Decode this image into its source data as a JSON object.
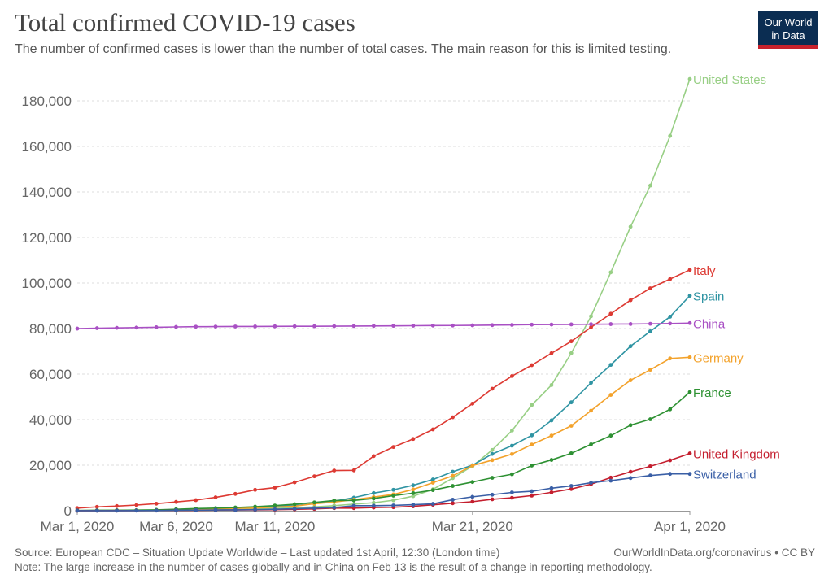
{
  "header": {
    "title": "Total confirmed COVID-19 cases",
    "subtitle": "The number of confirmed cases is lower than the number of total cases. The main reason for this is limited testing."
  },
  "logo": {
    "line1": "Our World",
    "line2": "in Data"
  },
  "footer": {
    "source": "Source: European CDC – Situation Update Worldwide – Last updated 1st April, 12:30 (London time)",
    "note": "Note: The large increase in the number of cases globally and in China on Feb 13 is the result of a change in reporting methodology.",
    "credit": "OurWorldInData.org/coronavirus • CC BY"
  },
  "chart_data": {
    "type": "line",
    "x": [
      "Mar 1",
      "Mar 2",
      "Mar 3",
      "Mar 4",
      "Mar 5",
      "Mar 6",
      "Mar 7",
      "Mar 8",
      "Mar 9",
      "Mar 10",
      "Mar 11",
      "Mar 12",
      "Mar 13",
      "Mar 14",
      "Mar 15",
      "Mar 16",
      "Mar 17",
      "Mar 18",
      "Mar 19",
      "Mar 20",
      "Mar 21",
      "Mar 22",
      "Mar 23",
      "Mar 24",
      "Mar 25",
      "Mar 26",
      "Mar 27",
      "Mar 28",
      "Mar 29",
      "Mar 30",
      "Mar 31",
      "Apr 1"
    ],
    "x_ticks": [
      {
        "index": 0,
        "label": "Mar 1, 2020"
      },
      {
        "index": 5,
        "label": "Mar 6, 2020"
      },
      {
        "index": 10,
        "label": "Mar 11, 2020"
      },
      {
        "index": 20,
        "label": "Mar 21, 2020"
      },
      {
        "index": 31,
        "label": "Apr 1, 2020"
      }
    ],
    "y_ticks": [
      "0",
      "20,000",
      "40,000",
      "60,000",
      "80,000",
      "100,000",
      "120,000",
      "140,000",
      "160,000",
      "180,000"
    ],
    "ylim": [
      0,
      190000
    ],
    "grid": "horizontal-dashed",
    "colors": {
      "axis": "#999999",
      "grid": "#dddddd",
      "tick_text": "#666666"
    },
    "series": [
      {
        "name": "United States",
        "color": "#98cf85",
        "values": [
          70,
          75,
          100,
          125,
          160,
          230,
          330,
          420,
          540,
          700,
          1000,
          1300,
          1700,
          2200,
          2900,
          3500,
          4600,
          6400,
          9400,
          14300,
          19600,
          26700,
          35200,
          46400,
          55200,
          69200,
          85400,
          104700,
          124700,
          142800,
          164600,
          189600
        ]
      },
      {
        "name": "Italy",
        "color": "#dd3a33",
        "values": [
          1130,
          1700,
          2040,
          2500,
          3090,
          3860,
          4640,
          5880,
          7380,
          9170,
          10150,
          12460,
          15110,
          17660,
          17750,
          23980,
          27980,
          31510,
          35710,
          41040,
          47020,
          53580,
          59140,
          63930,
          69180,
          74390,
          80540,
          86500,
          92470,
          97690,
          101740,
          105790
        ]
      },
      {
        "name": "Spain",
        "color": "#2f94a3",
        "values": [
          80,
          120,
          160,
          230,
          280,
          400,
          500,
          670,
          1000,
          1600,
          2140,
          2280,
          3150,
          4230,
          5750,
          7750,
          9190,
          11180,
          13720,
          17150,
          19980,
          24930,
          28570,
          33090,
          39670,
          47610,
          56190,
          64060,
          72250,
          78800,
          85200,
          94420
        ]
      },
      {
        "name": "China",
        "color": "#a950c4",
        "values": [
          79970,
          80170,
          80300,
          80420,
          80570,
          80710,
          80810,
          80860,
          80900,
          80920,
          80960,
          81000,
          81020,
          81050,
          81110,
          81140,
          81200,
          81250,
          81300,
          81340,
          81420,
          81500,
          81600,
          81700,
          81750,
          81800,
          81900,
          81950,
          82000,
          82100,
          82200,
          82400
        ]
      },
      {
        "name": "Germany",
        "color": "#f3a22b",
        "values": [
          60,
          120,
          160,
          190,
          260,
          530,
          670,
          800,
          1040,
          1180,
          1570,
          1970,
          3060,
          3800,
          4840,
          6010,
          7160,
          9360,
          12320,
          15320,
          19850,
          22210,
          24870,
          29060,
          32990,
          37320,
          43940,
          50870,
          57300,
          61910,
          66880,
          67370
        ]
      },
      {
        "name": "France",
        "color": "#2e9133",
        "values": [
          130,
          190,
          200,
          280,
          380,
          650,
          950,
          1130,
          1410,
          1780,
          2280,
          2860,
          3660,
          4480,
          4520,
          5380,
          6630,
          7720,
          9050,
          10870,
          12610,
          14460,
          16020,
          19850,
          22300,
          25230,
          29160,
          32960,
          37580,
          40170,
          44550,
          52130
        ]
      },
      {
        "name": "United Kingdom",
        "color": "#c41e2e",
        "values": [
          30,
          40,
          50,
          80,
          90,
          160,
          210,
          270,
          320,
          370,
          460,
          590,
          800,
          1140,
          1140,
          1390,
          1540,
          1950,
          2630,
          3270,
          3980,
          5010,
          5680,
          6650,
          8080,
          9530,
          11660,
          14540,
          17090,
          19520,
          22140,
          25150
        ]
      },
      {
        "name": "Switzerland",
        "color": "#3a5fa6",
        "values": [
          20,
          30,
          40,
          60,
          90,
          210,
          270,
          330,
          370,
          490,
          650,
          860,
          1140,
          1360,
          2200,
          2200,
          2330,
          2650,
          3010,
          4840,
          6110,
          7050,
          8040,
          8550,
          9880,
          10900,
          12310,
          13210,
          14350,
          15480,
          16180,
          16180
        ]
      }
    ]
  }
}
